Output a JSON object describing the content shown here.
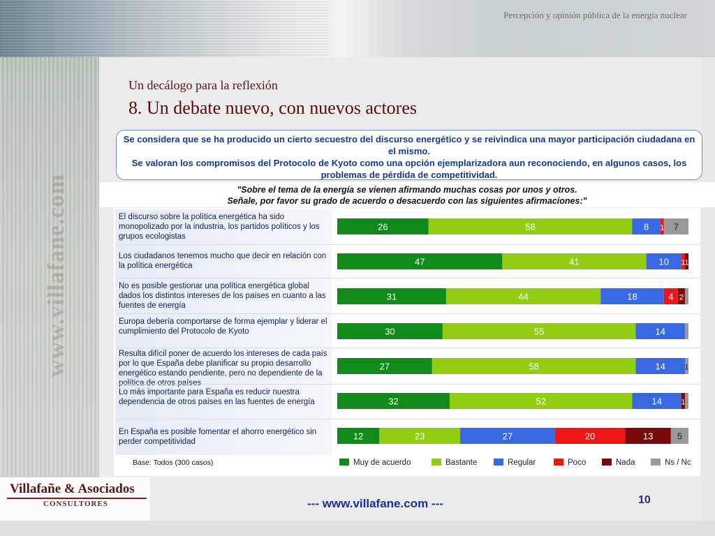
{
  "header": {
    "text": "Percepción y opinión pública de la energía nuclear"
  },
  "watermark": "www.villafane.com",
  "subtitle": "Un decálogo para la reflexión",
  "title": "8. Un debate nuevo, con nuevos actores",
  "summary": {
    "line1": "Se considera que se ha producido un cierto secuestro del discurso energético y se reivindica una mayor participación ciudadana en el mismo.",
    "line2": "Se valoran los compromisos del Protocolo de Kyoto como una opción ejemplarizadora aun reconociendo, en algunos casos, los problemas de pérdida de competitividad."
  },
  "question": {
    "line1": "\"Sobre el tema de la energía se vienen afirmando muchas cosas por unos y otros.",
    "line2": "Señale, por favor su grado de acuerdo o desacuerdo con las siguientes afirmaciones:\""
  },
  "base": "Base: Todos (300 casos)",
  "colors": {
    "muy_de_acuerdo": "#108a1a",
    "bastante": "#93cd12",
    "regular": "#3968e3",
    "poco": "#ee1616",
    "nada": "#7a0a0a",
    "ns_nc": "#9a9a9a"
  },
  "chart_data": {
    "type": "bar",
    "orientation": "horizontal",
    "stacked": true,
    "normalized": true,
    "categories": [
      "El discurso sobre la política energética ha sido monopolizado por la industria, los partidos políticos y los grupos ecologistas",
      "Los ciudadanos tenemos mucho que decir en relación con la política energética",
      "No es posible gestionar una política energética global dados los distintos intereses de los países en cuanto a las fuentes de energía",
      "Europa debería comportarse de forma ejemplar y liderar el cumplimiento del Protocolo de Kyoto",
      "Resulta difícil poner de acuerdo los intereses de cada país por lo que España debe planificar su propio desarrollo energético estando pendiente, pero no dependiente de la política de otros países",
      "Lo más importante para España es reducir nuestra dependencia de otros países en las fuentes de energía",
      "En España es posible fomentar el ahorro energético sin perder competitividad"
    ],
    "series": [
      {
        "name": "Muy de acuerdo",
        "values": [
          26,
          47,
          31,
          30,
          27,
          32,
          12
        ]
      },
      {
        "name": "Bastante",
        "values": [
          58,
          41,
          44,
          55,
          58,
          52,
          23
        ]
      },
      {
        "name": "Regular",
        "values": [
          8,
          10,
          18,
          14,
          14,
          14,
          27
        ]
      },
      {
        "name": "Poco",
        "values": [
          1,
          1,
          4,
          0,
          0,
          0,
          20
        ]
      },
      {
        "name": "Nada",
        "values": [
          0,
          1,
          2,
          0,
          0,
          1,
          13
        ]
      },
      {
        "name": "Ns / Nc",
        "values": [
          7,
          0,
          1,
          1,
          1,
          1,
          5
        ]
      }
    ],
    "labels": [
      [
        "26",
        "58",
        "8",
        "1",
        "",
        "7"
      ],
      [
        "47",
        "41",
        "10",
        "1",
        "1",
        ""
      ],
      [
        "31",
        "44",
        "18",
        "4",
        "2",
        ""
      ],
      [
        "30",
        "55",
        "14",
        "",
        "",
        ""
      ],
      [
        "27",
        "58",
        "14",
        "",
        "",
        "1"
      ],
      [
        "32",
        "52",
        "14",
        "",
        "1",
        ""
      ],
      [
        "12",
        "23",
        "27",
        "20",
        "13",
        "5"
      ]
    ],
    "legend": [
      "Muy de acuerdo",
      "Bastante",
      "Regular",
      "Poco",
      "Nada",
      "Ns / Nc"
    ],
    "legend_position": "bottom"
  },
  "footer": {
    "url": "---  www.villafane.com  ---",
    "page": "10"
  },
  "logo": {
    "name": "Villafañe & Asociados",
    "sub": "CONSULTORES"
  }
}
